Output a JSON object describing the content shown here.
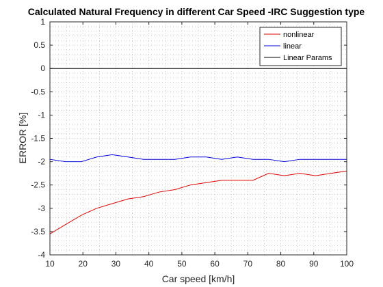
{
  "chart_data": {
    "type": "line",
    "title": "Calculated Natural Frequency in different Car Speed -IRC Suggestion type",
    "xlabel": "Car speed [km/h]",
    "ylabel": "ERROR [%]",
    "xlim": [
      10,
      100
    ],
    "ylim": [
      -4,
      1
    ],
    "xticks": [
      10,
      20,
      30,
      40,
      50,
      60,
      70,
      80,
      90,
      100
    ],
    "yticks": [
      -4,
      -3.5,
      -3,
      -2.5,
      -2,
      -1.5,
      -1,
      -0.5,
      0,
      0.5,
      1
    ],
    "grid": "minor-dotted",
    "legend_position": "top-right",
    "series": [
      {
        "name": "nonlinear",
        "color": "#dd0000",
        "x": [
          10,
          14.7,
          19.5,
          24.2,
          28.9,
          33.7,
          38.4,
          43.2,
          47.9,
          52.6,
          57.4,
          62.1,
          66.8,
          71.6,
          76.3,
          81.1,
          85.8,
          90.5,
          95.3,
          100
        ],
        "y": [
          -3.55,
          -3.35,
          -3.15,
          -3.0,
          -2.9,
          -2.8,
          -2.75,
          -2.65,
          -2.6,
          -2.5,
          -2.45,
          -2.4,
          -2.4,
          -2.4,
          -2.25,
          -2.3,
          -2.25,
          -2.3,
          -2.25,
          -2.2
        ]
      },
      {
        "name": "linear",
        "color": "#0000dd",
        "x": [
          10,
          14.7,
          19.5,
          24.2,
          28.9,
          33.7,
          38.4,
          43.2,
          47.9,
          52.6,
          57.4,
          62.1,
          66.8,
          71.6,
          76.3,
          81.1,
          85.8,
          90.5,
          95.3,
          100
        ],
        "y": [
          -1.95,
          -2.0,
          -2.0,
          -1.9,
          -1.85,
          -1.9,
          -1.95,
          -1.95,
          -1.95,
          -1.9,
          -1.9,
          -1.95,
          -1.9,
          -1.95,
          -1.95,
          -2.0,
          -1.95,
          -1.95,
          -1.95,
          -1.95
        ]
      },
      {
        "name": "Linear Params",
        "color": "#000000",
        "x": [
          10,
          100
        ],
        "y": [
          0,
          0
        ]
      }
    ]
  }
}
